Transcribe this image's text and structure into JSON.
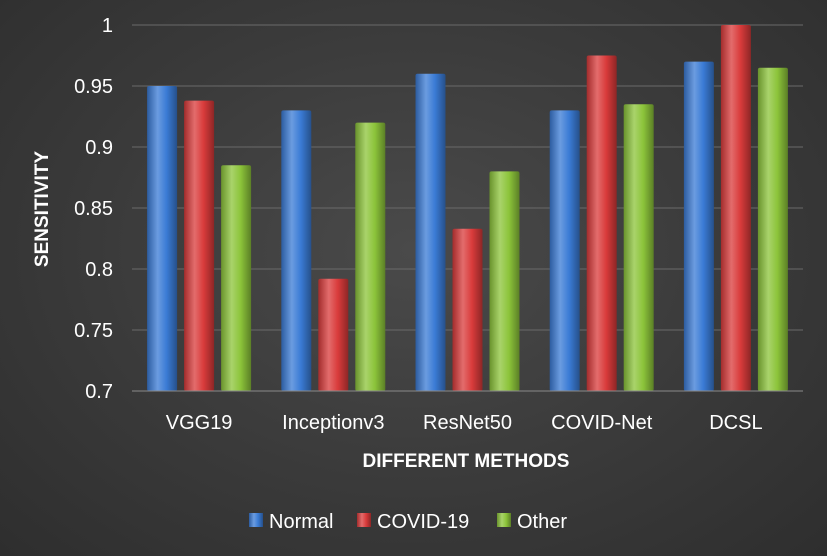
{
  "chart_data": {
    "type": "bar",
    "xlabel": "DIFFERENT METHODS",
    "ylabel": "SENSITIVITY",
    "ylim": [
      0.7,
      1.0
    ],
    "yticks": [
      "0.7",
      "0.75",
      "0.8",
      "0.85",
      "0.9",
      "0.95",
      "1"
    ],
    "grid": true,
    "legend": "bottom",
    "categories": [
      "VGG19",
      "Inceptionv3",
      "ResNet50",
      "COVID-Net",
      "DCSL"
    ],
    "series": [
      {
        "name": "Normal",
        "color": "#3a7bd5",
        "values": [
          0.95,
          0.93,
          0.96,
          0.93,
          0.97
        ]
      },
      {
        "name": "COVID-19",
        "color": "#d93b3b",
        "values": [
          0.938,
          0.792,
          0.833,
          0.975,
          1.0
        ]
      },
      {
        "name": "Other",
        "color": "#8cc43a",
        "values": [
          0.885,
          0.92,
          0.88,
          0.935,
          0.965
        ]
      }
    ]
  }
}
